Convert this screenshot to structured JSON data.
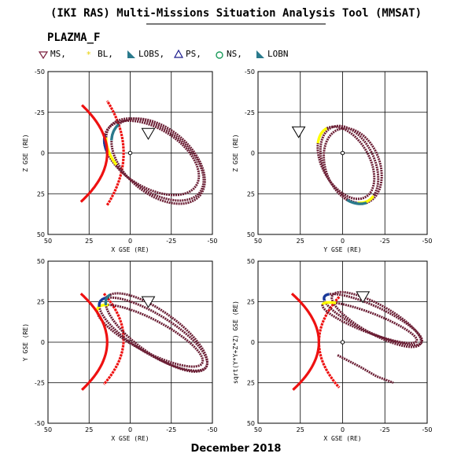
{
  "header": {
    "title": "(IKI RAS) Multi-Missions Situation Analysis Tool (MMSAT)",
    "mission": "PLAZMA_F"
  },
  "legend": [
    {
      "label": "MS,",
      "icon": "triangle-down-icon",
      "color": "#7a1f3d"
    },
    {
      "label": "BL,",
      "icon": "star-icon",
      "color": "#f5e21a"
    },
    {
      "label": "LOBS,",
      "icon": "flag-triangle-icon",
      "color": "#2a7a8c"
    },
    {
      "label": "PS,",
      "icon": "triangle-up-icon",
      "color": "#1a1a8c"
    },
    {
      "label": "NS,",
      "icon": "circle-icon",
      "color": "#1a9a5a"
    },
    {
      "label": "LOBN",
      "icon": "flag-triangle-icon",
      "color": "#2a7a8c"
    }
  ],
  "footer": "December 2018",
  "colors": {
    "orbit": "#6b1f35",
    "boundary": "#ee1111",
    "bl": "#ffff00",
    "lobe": "#2a7a8c",
    "ps": "#1a3a9a"
  },
  "chart_data": [
    {
      "type": "scatter",
      "xlabel": "X GSE (RE)",
      "ylabel": "Z GSE (RE)",
      "x_ticks": [
        "50",
        "25",
        "0",
        "-25",
        "-50"
      ],
      "y_ticks": [
        "50",
        "25",
        "0",
        "-25",
        "-50"
      ],
      "xlim": [
        50,
        -50
      ],
      "ylim": [
        -50,
        50
      ],
      "grid": true
    },
    {
      "type": "scatter",
      "xlabel": "Y GSE (RE)",
      "ylabel": "Z GSE (RE)",
      "x_ticks": [
        "50",
        "25",
        "0",
        "-25",
        "-50"
      ],
      "y_ticks": [
        "50",
        "25",
        "0",
        "-25",
        "-50"
      ],
      "xlim": [
        50,
        -50
      ],
      "ylim": [
        -50,
        50
      ],
      "grid": true
    },
    {
      "type": "scatter",
      "xlabel": "X GSE (RE)",
      "ylabel": "Y GSE (RE)",
      "x_ticks": [
        "50",
        "25",
        "0",
        "-25",
        "-50"
      ],
      "y_ticks": [
        "-50",
        "-25",
        "0",
        "25",
        "50"
      ],
      "xlim": [
        50,
        -50
      ],
      "ylim": [
        50,
        -50
      ],
      "grid": true
    },
    {
      "type": "scatter",
      "xlabel": "X GSE (RE)",
      "ylabel": "sqrt(Y*Y+Z*Z) GSE (RE)",
      "x_ticks": [
        "50",
        "25",
        "0",
        "-25",
        "-50"
      ],
      "y_ticks": [
        "50",
        "25",
        "0",
        "25",
        "50"
      ],
      "xlim": [
        50,
        -50
      ],
      "ylim": [
        50,
        -50
      ],
      "grid": true
    }
  ]
}
